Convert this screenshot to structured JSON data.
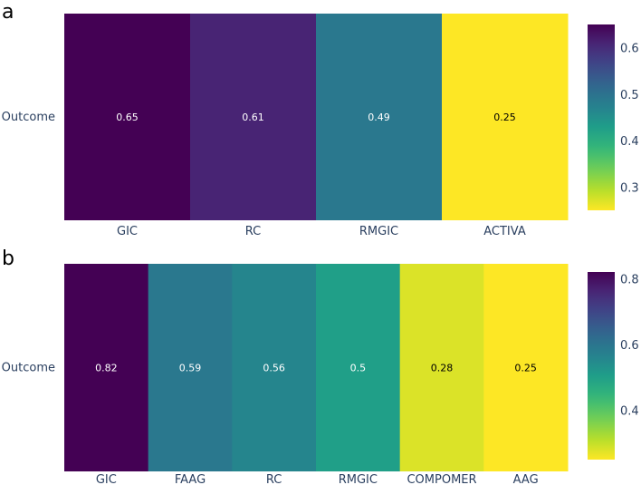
{
  "chart_data": [
    {
      "type": "heatmap",
      "panel_label": "a",
      "categories": [
        "GIC",
        "RC",
        "RMGIC",
        "ACTIVA"
      ],
      "rows": [
        "Outcome"
      ],
      "values": [
        0.65,
        0.61,
        0.49,
        0.25
      ],
      "colorbar": {
        "range": [
          0.25,
          0.65
        ],
        "ticks": [
          0.3,
          0.4,
          0.5,
          0.6
        ],
        "tick_labels": [
          "0.3",
          "0.4",
          "0.5",
          "0.6"
        ]
      },
      "colorscale": "viridis (reversed)"
    },
    {
      "type": "heatmap",
      "panel_label": "b",
      "categories": [
        "GIC",
        "FAAG",
        "RC",
        "RMGIC",
        "COMPOMER",
        "AAG"
      ],
      "rows": [
        "Outcome"
      ],
      "values": [
        0.82,
        0.59,
        0.56,
        0.5,
        0.28,
        0.25
      ],
      "cell_labels": [
        "0.82",
        "0.59",
        "0.56",
        "0.5",
        "0.28",
        "0.25"
      ],
      "colorbar": {
        "range": [
          0.25,
          0.82
        ],
        "ticks": [
          0.4,
          0.6,
          0.8
        ],
        "tick_labels": [
          "0.4",
          "0.6",
          "0.8"
        ]
      },
      "colorscale": "viridis (reversed)"
    }
  ]
}
